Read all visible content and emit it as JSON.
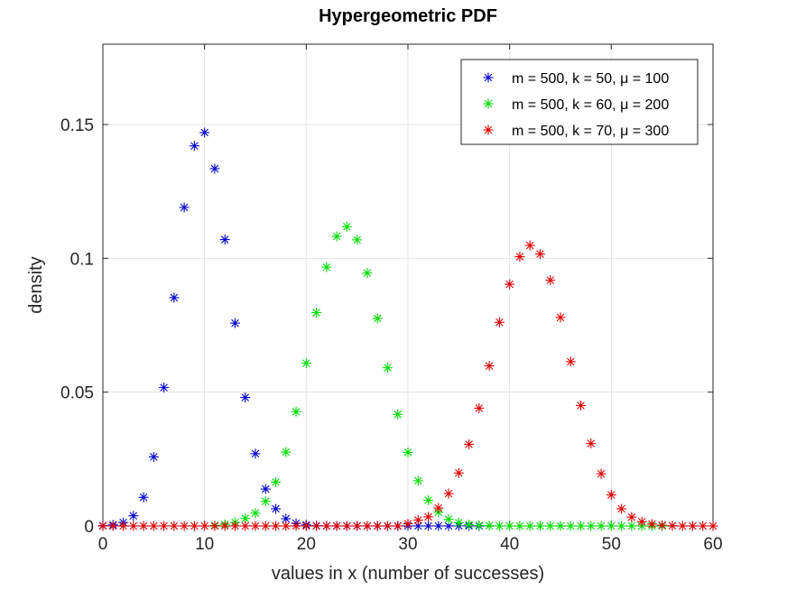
{
  "chart_data": {
    "type": "scatter",
    "title": "Hypergeometric PDF",
    "xlabel": "values in x (number of successes)",
    "ylabel": "density",
    "xlim": [
      0,
      60
    ],
    "ylim": [
      0,
      0.18
    ],
    "xticks": [
      0,
      10,
      20,
      30,
      40,
      50,
      60
    ],
    "yticks": [
      0,
      0.05,
      0.1,
      0.15
    ],
    "ytick_labels": [
      "0",
      "0.05",
      "0.1",
      "0.15"
    ],
    "grid": true,
    "legend_position": "top-right",
    "marker": "asterisk",
    "series": [
      {
        "name": "m = 500, k = 50, μ = 100",
        "color": "#0000cc",
        "x": [
          0,
          1,
          2,
          3,
          4,
          5,
          6,
          7,
          8,
          9,
          10,
          11,
          12,
          13,
          14,
          15,
          16,
          17,
          18,
          19,
          20,
          21,
          22,
          23,
          24,
          25,
          26,
          27,
          28,
          29,
          30,
          31,
          32,
          33,
          34,
          35,
          36,
          37
        ],
        "y": [
          0.0001,
          0.0004,
          0.0013,
          0.0038,
          0.0107,
          0.0258,
          0.0517,
          0.0853,
          0.119,
          0.142,
          0.147,
          0.1335,
          0.107,
          0.0758,
          0.048,
          0.027,
          0.0138,
          0.0064,
          0.0027,
          0.001,
          0.0004,
          0.0001,
          0,
          0,
          0,
          0,
          0,
          0,
          0,
          0,
          0,
          0,
          0,
          0,
          0,
          0,
          0,
          0
        ]
      },
      {
        "name": "m = 500, k = 60, μ = 200",
        "color": "#00dd00",
        "x": [
          11,
          12,
          13,
          14,
          15,
          16,
          17,
          18,
          19,
          20,
          21,
          22,
          23,
          24,
          25,
          26,
          27,
          28,
          29,
          30,
          31,
          32,
          33,
          34,
          35,
          36,
          37,
          38,
          39,
          40,
          41,
          42,
          43,
          44,
          45,
          46,
          47,
          48,
          49,
          50,
          51,
          52,
          53,
          54,
          55
        ],
        "y": [
          0.0002,
          0.0006,
          0.0013,
          0.0028,
          0.0048,
          0.0092,
          0.0164,
          0.0276,
          0.0427,
          0.0608,
          0.0797,
          0.0967,
          0.1082,
          0.1118,
          0.1069,
          0.0945,
          0.0775,
          0.0591,
          0.0417,
          0.0275,
          0.0169,
          0.0096,
          0.0051,
          0.0025,
          0.0012,
          0.0005,
          0.0002,
          0.0001,
          0,
          0,
          0,
          0,
          0,
          0,
          0,
          0,
          0,
          0,
          0,
          0,
          0,
          0,
          0,
          0,
          0
        ]
      },
      {
        "name": "m = 500, k = 70, μ = 300",
        "color": "#dd0000",
        "x": [
          0,
          1,
          2,
          3,
          4,
          5,
          6,
          7,
          8,
          9,
          10,
          11,
          12,
          13,
          14,
          15,
          16,
          17,
          18,
          19,
          20,
          21,
          22,
          23,
          24,
          25,
          26,
          27,
          28,
          29,
          30,
          31,
          32,
          33,
          34,
          35,
          36,
          37,
          38,
          39,
          40,
          41,
          42,
          43,
          44,
          45,
          46,
          47,
          48,
          49,
          50,
          51,
          52,
          53,
          54,
          55,
          56,
          57,
          58,
          59,
          60
        ],
        "y": [
          0,
          0,
          0,
          0,
          0,
          0,
          0,
          0,
          0,
          0,
          0,
          0,
          0,
          0,
          0,
          0,
          0,
          0,
          0,
          0,
          0,
          0,
          0,
          0,
          0,
          0,
          0,
          0,
          0,
          0,
          0.0008,
          0.0022,
          0.0034,
          0.0067,
          0.0121,
          0.0198,
          0.0305,
          0.044,
          0.0598,
          0.0761,
          0.0903,
          0.1006,
          0.1048,
          0.1016,
          0.0918,
          0.0779,
          0.0614,
          0.045,
          0.0308,
          0.0195,
          0.0116,
          0.0064,
          0.0033,
          0.0016,
          0.0007,
          0.0003,
          0.0001,
          0,
          0,
          0,
          0
        ]
      }
    ]
  }
}
